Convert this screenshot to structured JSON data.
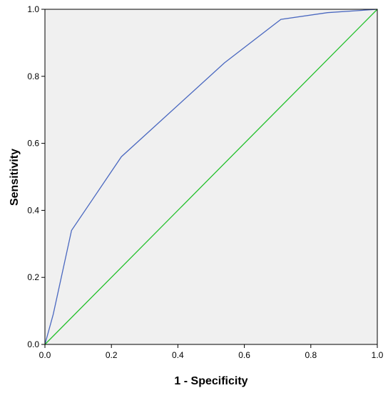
{
  "chart_data": {
    "type": "line",
    "xlabel": "1 - Specificity",
    "ylabel": "Sensitivity",
    "xlim": [
      0,
      1
    ],
    "ylim": [
      0,
      1
    ],
    "x_ticks": [
      "0.0",
      "0.2",
      "0.4",
      "0.6",
      "0.8",
      "1.0"
    ],
    "y_ticks": [
      "0.0",
      "0.2",
      "0.4",
      "0.6",
      "0.8",
      "1.0"
    ],
    "grid": false,
    "plot_background": "#f0f0f0",
    "series": [
      {
        "color": "#4a68c0",
        "x": [
          0.0,
          0.025,
          0.08,
          0.23,
          0.54,
          0.71,
          0.85,
          1.0
        ],
        "y": [
          0.0,
          0.09,
          0.34,
          0.56,
          0.84,
          0.97,
          0.99,
          1.0
        ]
      },
      {
        "color": "#22c02a",
        "x": [
          0.0,
          1.0
        ],
        "y": [
          0.0,
          1.0
        ]
      }
    ]
  }
}
